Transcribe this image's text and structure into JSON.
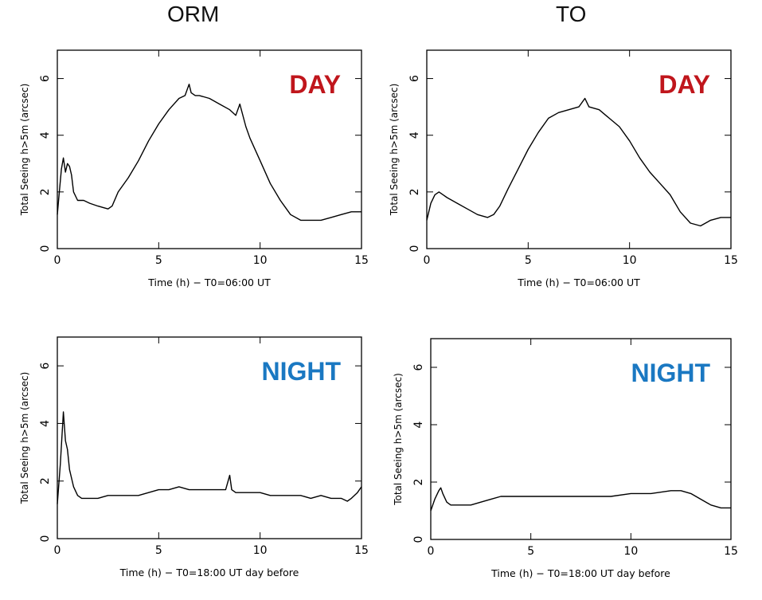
{
  "columns": [
    "ORM",
    "TO"
  ],
  "chart_data": [
    {
      "type": "line",
      "site": "ORM",
      "period": "DAY",
      "xlabel": "Time (h)  −  T0=06:00 UT",
      "ylabel": "Total Seeing h>5m (arcsec)",
      "xlim": [
        0,
        15
      ],
      "ylim": [
        0,
        7
      ],
      "xticks": [
        0,
        5,
        10,
        15
      ],
      "yticks": [
        0,
        2,
        4,
        6
      ],
      "grid": false,
      "annotation": {
        "text": "DAY",
        "color": "#c0161c"
      },
      "x": [
        0,
        0.1,
        0.2,
        0.3,
        0.4,
        0.5,
        0.6,
        0.7,
        0.8,
        1.0,
        1.3,
        1.6,
        2.0,
        2.5,
        2.7,
        3.0,
        3.5,
        4.0,
        4.5,
        5.0,
        5.5,
        6.0,
        6.3,
        6.5,
        6.6,
        6.8,
        7.0,
        7.5,
        8.0,
        8.5,
        8.8,
        9.0,
        9.3,
        9.5,
        10.0,
        10.5,
        11.0,
        11.5,
        12.0,
        12.5,
        13.0,
        13.5,
        14.0,
        14.5,
        15.0
      ],
      "values": [
        1.2,
        2.0,
        2.8,
        3.2,
        2.7,
        3.0,
        2.9,
        2.6,
        2.0,
        1.7,
        1.7,
        1.6,
        1.5,
        1.4,
        1.5,
        2.0,
        2.5,
        3.1,
        3.8,
        4.4,
        4.9,
        5.3,
        5.4,
        5.8,
        5.5,
        5.4,
        5.4,
        5.3,
        5.1,
        4.9,
        4.7,
        5.1,
        4.3,
        3.9,
        3.1,
        2.3,
        1.7,
        1.2,
        1.0,
        1.0,
        1.0,
        1.1,
        1.2,
        1.3,
        1.3
      ]
    },
    {
      "type": "line",
      "site": "TO",
      "period": "DAY",
      "xlabel": "Time (h)  −  T0=06:00 UT",
      "ylabel": "Total Seeing h>5m (arcsec)",
      "xlim": [
        0,
        15
      ],
      "ylim": [
        0,
        7
      ],
      "xticks": [
        0,
        5,
        10,
        15
      ],
      "yticks": [
        0,
        2,
        4,
        6
      ],
      "grid": false,
      "annotation": {
        "text": "DAY",
        "color": "#c0161c"
      },
      "x": [
        0,
        0.2,
        0.4,
        0.6,
        0.8,
        1.0,
        1.5,
        2.0,
        2.5,
        3.0,
        3.3,
        3.6,
        4.0,
        4.5,
        5.0,
        5.5,
        6.0,
        6.5,
        7.0,
        7.5,
        7.8,
        8.0,
        8.5,
        9.0,
        9.5,
        10.0,
        10.5,
        11.0,
        11.5,
        12.0,
        12.5,
        13.0,
        13.5,
        14.0,
        14.5,
        15.0
      ],
      "values": [
        1.0,
        1.6,
        1.9,
        2.0,
        1.9,
        1.8,
        1.6,
        1.4,
        1.2,
        1.1,
        1.2,
        1.5,
        2.1,
        2.8,
        3.5,
        4.1,
        4.6,
        4.8,
        4.9,
        5.0,
        5.3,
        5.0,
        4.9,
        4.6,
        4.3,
        3.8,
        3.2,
        2.7,
        2.3,
        1.9,
        1.3,
        0.9,
        0.8,
        1.0,
        1.1,
        1.1
      ]
    },
    {
      "type": "line",
      "site": "ORM",
      "period": "NIGHT",
      "xlabel": "Time (h)  −  T0=18:00 UT day before",
      "ylabel": "Total Seeing h>5m (arcsec)",
      "xlim": [
        0,
        15
      ],
      "ylim": [
        0,
        7
      ],
      "xticks": [
        0,
        5,
        10,
        15
      ],
      "yticks": [
        0,
        2,
        4,
        6
      ],
      "grid": false,
      "annotation": {
        "text": "NIGHT",
        "color": "#1a78c2"
      },
      "x": [
        0,
        0.15,
        0.3,
        0.4,
        0.5,
        0.6,
        0.8,
        1.0,
        1.2,
        1.5,
        2.0,
        2.5,
        3.0,
        3.5,
        4.0,
        4.5,
        5.0,
        5.5,
        6.0,
        6.5,
        7.0,
        7.5,
        8.0,
        8.3,
        8.5,
        8.6,
        8.8,
        9.0,
        9.5,
        10.0,
        10.5,
        11.0,
        11.5,
        12.0,
        12.5,
        13.0,
        13.5,
        14.0,
        14.3,
        14.5,
        14.8,
        15.0
      ],
      "values": [
        1.2,
        2.6,
        4.4,
        3.4,
        3.1,
        2.4,
        1.8,
        1.5,
        1.4,
        1.4,
        1.4,
        1.5,
        1.5,
        1.5,
        1.5,
        1.6,
        1.7,
        1.7,
        1.8,
        1.7,
        1.7,
        1.7,
        1.7,
        1.7,
        2.2,
        1.7,
        1.6,
        1.6,
        1.6,
        1.6,
        1.5,
        1.5,
        1.5,
        1.5,
        1.4,
        1.5,
        1.4,
        1.4,
        1.3,
        1.4,
        1.6,
        1.8
      ]
    },
    {
      "type": "line",
      "site": "TO",
      "period": "NIGHT",
      "xlabel": "Time (h)  −  T0=18:00 UT day before",
      "ylabel": "Total Seeing h>5m (arcsec)",
      "xlim": [
        0,
        15
      ],
      "ylim": [
        0,
        7
      ],
      "xticks": [
        0,
        5,
        10,
        15
      ],
      "yticks": [
        0,
        2,
        4,
        6
      ],
      "grid": false,
      "annotation": {
        "text": "NIGHT",
        "color": "#1a78c2"
      },
      "x": [
        0,
        0.2,
        0.4,
        0.5,
        0.6,
        0.8,
        1.0,
        1.5,
        2.0,
        2.5,
        3.0,
        3.5,
        4.0,
        5.0,
        6.0,
        7.0,
        8.0,
        9.0,
        10.0,
        11.0,
        12.0,
        12.5,
        13.0,
        13.5,
        14.0,
        14.5,
        15.0
      ],
      "values": [
        1.0,
        1.4,
        1.7,
        1.8,
        1.6,
        1.3,
        1.2,
        1.2,
        1.2,
        1.3,
        1.4,
        1.5,
        1.5,
        1.5,
        1.5,
        1.5,
        1.5,
        1.5,
        1.6,
        1.6,
        1.7,
        1.7,
        1.6,
        1.4,
        1.2,
        1.1,
        1.1
      ]
    }
  ]
}
